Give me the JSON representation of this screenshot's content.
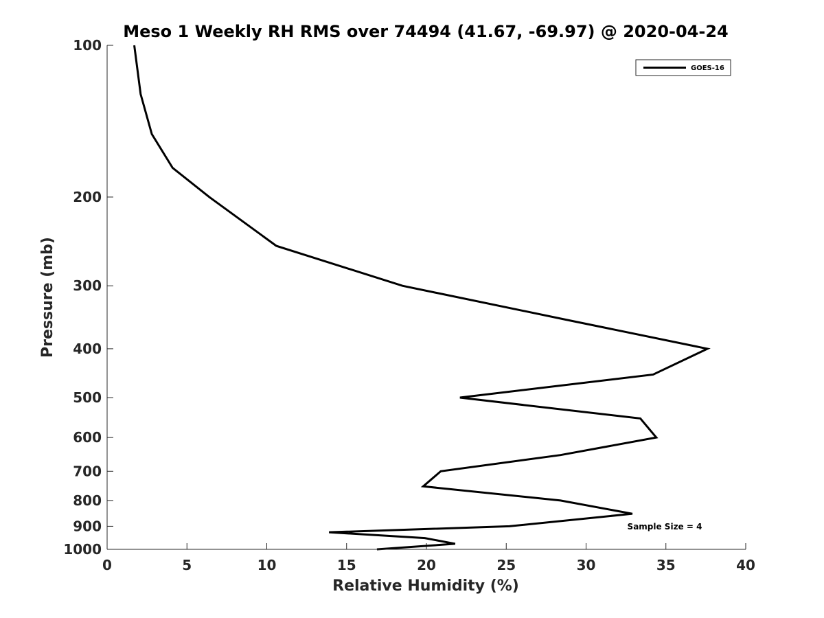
{
  "chart_data": {
    "type": "line",
    "title": "Meso 1 Weekly RH RMS over 74494 (41.67, -69.97) @ 2020-04-24",
    "xlabel": "Relative Humidity (%)",
    "ylabel": "Pressure (mb)",
    "xlim": [
      0,
      40
    ],
    "ylim": [
      1000,
      100
    ],
    "y_scale": "log",
    "y_reversed": true,
    "grid": false,
    "legend_position": "top-right",
    "x_ticks": [
      0,
      5,
      10,
      15,
      20,
      25,
      30,
      35,
      40
    ],
    "y_ticks": [
      100,
      200,
      300,
      400,
      500,
      600,
      700,
      800,
      900,
      1000
    ],
    "annotation": "Sample Size = 4",
    "series": [
      {
        "name": "GOES-16",
        "color": "#000000",
        "points": [
          {
            "x": 1.7,
            "p": 100
          },
          {
            "x": 2.1,
            "p": 125
          },
          {
            "x": 2.8,
            "p": 150
          },
          {
            "x": 4.1,
            "p": 175
          },
          {
            "x": 6.4,
            "p": 200
          },
          {
            "x": 10.6,
            "p": 250
          },
          {
            "x": 18.5,
            "p": 300
          },
          {
            "x": 28.7,
            "p": 350
          },
          {
            "x": 37.6,
            "p": 400
          },
          {
            "x": 34.2,
            "p": 450
          },
          {
            "x": 22.1,
            "p": 500
          },
          {
            "x": 33.4,
            "p": 550
          },
          {
            "x": 34.4,
            "p": 600
          },
          {
            "x": 28.4,
            "p": 650
          },
          {
            "x": 20.9,
            "p": 700
          },
          {
            "x": 19.8,
            "p": 750
          },
          {
            "x": 28.4,
            "p": 800
          },
          {
            "x": 32.9,
            "p": 850
          },
          {
            "x": 25.2,
            "p": 900
          },
          {
            "x": 13.9,
            "p": 925
          },
          {
            "x": 19.9,
            "p": 950
          },
          {
            "x": 21.8,
            "p": 975
          },
          {
            "x": 16.9,
            "p": 1000
          }
        ],
        "pressures_mb": [
          100,
          125,
          150,
          175,
          200,
          250,
          300,
          350,
          400,
          450,
          500,
          550,
          600,
          650,
          700,
          750,
          800,
          850,
          900,
          925,
          950,
          975,
          1000
        ],
        "x_values": [
          1.7,
          2.1,
          2.8,
          4.1,
          6.4,
          10.6,
          18.5,
          28.7,
          37.6,
          34.2,
          22.1,
          33.4,
          34.4,
          28.4,
          20.9,
          19.8,
          28.4,
          32.9,
          25.2,
          13.9,
          19.9,
          21.8,
          16.9
        ]
      }
    ]
  }
}
